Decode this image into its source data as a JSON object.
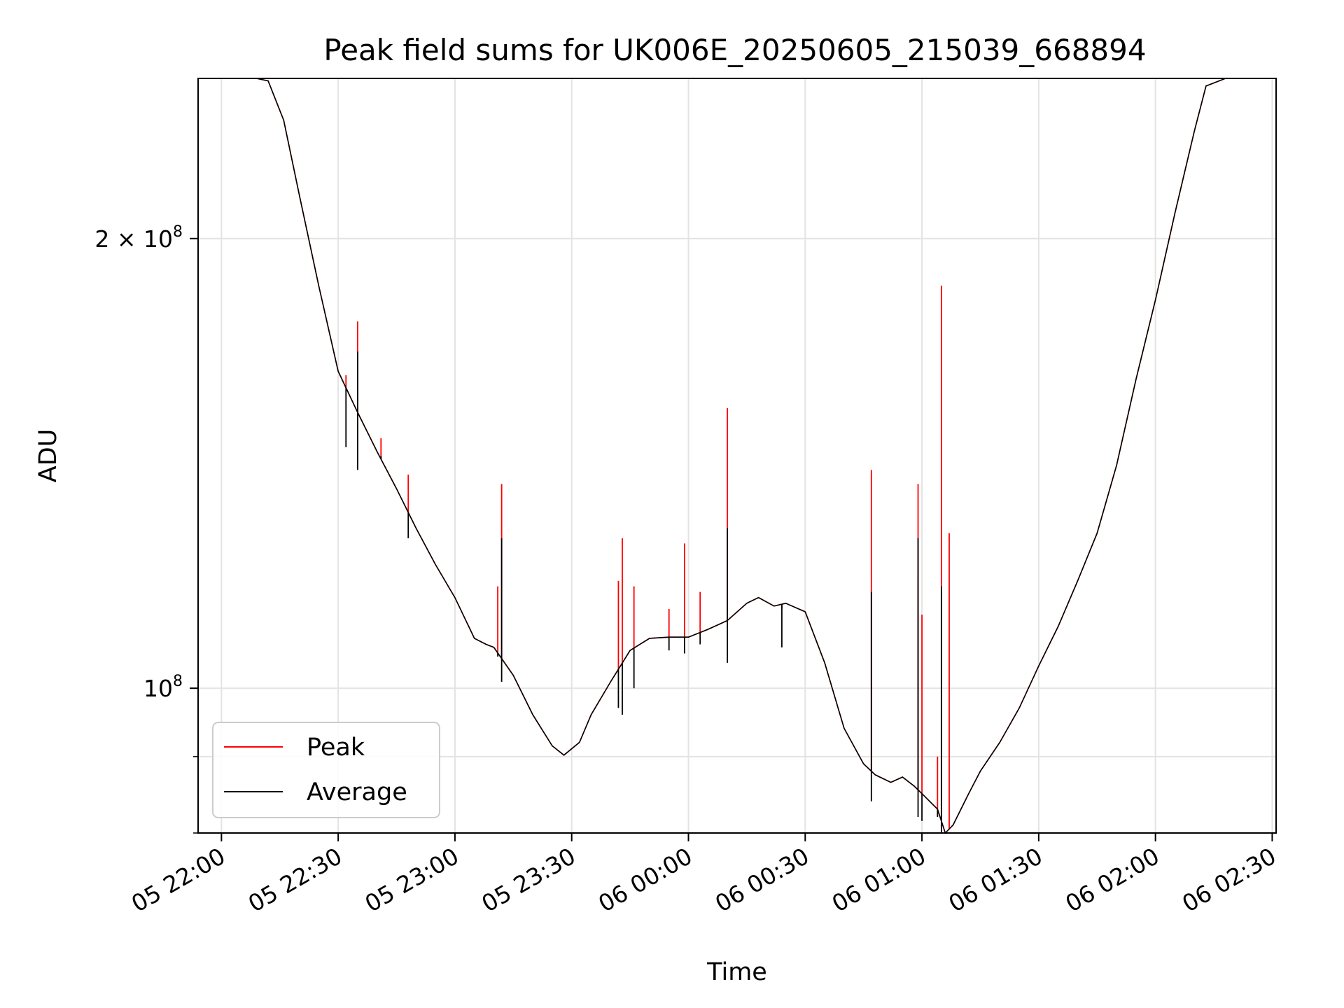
{
  "chart_data": {
    "type": "line",
    "title": "Peak field sums for UK006E_20250605_215039_668894",
    "xlabel": "Time",
    "ylabel": "ADU",
    "y_scale": "log",
    "ylim": [
      80000000,
      256000000
    ],
    "xlim": [
      "05 21:54",
      "06 02:31"
    ],
    "grid": true,
    "legend_position": "lower-left",
    "x_ticks": [
      "05 22:00",
      "05 22:30",
      "05 23:00",
      "05 23:30",
      "06 00:00",
      "06 00:30",
      "06 01:00",
      "06 01:30",
      "06 02:00",
      "06 02:30"
    ],
    "y_ticks": [
      {
        "value": 100000000,
        "base": "10",
        "exp": "8",
        "coef": ""
      },
      {
        "value": 200000000,
        "base": "10",
        "exp": "8",
        "coef": "2 × "
      }
    ],
    "x": [
      "05 22:09",
      "05 22:12",
      "05 22:16",
      "05 22:20",
      "05 22:25",
      "05 22:30",
      "05 22:35",
      "05 22:40",
      "05 22:45",
      "05 22:50",
      "05 22:55",
      "05 23:00",
      "05 23:05",
      "05 23:08",
      "05 23:10",
      "05 23:15",
      "05 23:20",
      "05 23:25",
      "05 23:28",
      "05 23:32",
      "05 23:35",
      "05 23:40",
      "05 23:45",
      "05 23:50",
      "05 23:55",
      "06 00:00",
      "06 00:05",
      "06 00:10",
      "06 00:15",
      "06 00:18",
      "06 00:22",
      "06 00:25",
      "06 00:30",
      "06 00:35",
      "06 00:40",
      "06 00:45",
      "06 00:48",
      "06 00:52",
      "06 00:55",
      "06 00:58",
      "06 01:00",
      "06 01:04",
      "06 01:06",
      "06 01:08",
      "06 01:12",
      "06 01:15",
      "06 01:20",
      "06 01:25",
      "06 01:30",
      "06 01:35",
      "06 01:40",
      "06 01:45",
      "06 01:50",
      "06 01:55",
      "06 02:00",
      "06 02:05",
      "06 02:10",
      "06 02:13",
      "06 02:18",
      "06 02:31"
    ],
    "series": [
      {
        "name": "Peak",
        "color": "#ff0000",
        "values": [
          256000000,
          255000000,
          240000000,
          214000000,
          186000000,
          163000000,
          153000000,
          144000000,
          136000000,
          128000000,
          121000000,
          115000000,
          108000000,
          107000000,
          106500000,
          102000000,
          96000000,
          91500000,
          90200000,
          92000000,
          96000000,
          101000000,
          106000000,
          108000000,
          108200000,
          108200000,
          109500000,
          111000000,
          114000000,
          115000000,
          113500000,
          114000000,
          112500000,
          104000000,
          94000000,
          89000000,
          87500000,
          86500000,
          87200000,
          86000000,
          85000000,
          83000000,
          80000000,
          81000000,
          85000000,
          88000000,
          92000000,
          97000000,
          103500000,
          110000000,
          118000000,
          127000000,
          141000000,
          161000000,
          182000000,
          208000000,
          236000000,
          253000000,
          256000000,
          256000000
        ]
      },
      {
        "name": "Average",
        "color": "#000000",
        "values": [
          256000000,
          255000000,
          240000000,
          214000000,
          186000000,
          163000000,
          153000000,
          144000000,
          136000000,
          128000000,
          121000000,
          115000000,
          108000000,
          107000000,
          106500000,
          102000000,
          96000000,
          91500000,
          90200000,
          92000000,
          96000000,
          101000000,
          106000000,
          108000000,
          108200000,
          108200000,
          109500000,
          111000000,
          114000000,
          115000000,
          113500000,
          114000000,
          112500000,
          104000000,
          94000000,
          89000000,
          87500000,
          86500000,
          87200000,
          86000000,
          85000000,
          83000000,
          80000000,
          81000000,
          85000000,
          88000000,
          92000000,
          97000000,
          103500000,
          110000000,
          118000000,
          127000000,
          141000000,
          161000000,
          182000000,
          208000000,
          236000000,
          253000000,
          256000000,
          256000000
        ]
      }
    ],
    "spikes": [
      {
        "x": "05 22:32",
        "peak": 162000000,
        "avg_low": 145000000
      },
      {
        "x": "05 22:35",
        "peak": 176000000,
        "avg_high": 168000000,
        "avg_low": 140000000
      },
      {
        "x": "05 22:41",
        "peak": 147000000,
        "avg_high": 143000000
      },
      {
        "x": "05 22:48",
        "peak": 139000000,
        "avg_low": 126000000
      },
      {
        "x": "05 23:11",
        "peak": 117000000,
        "avg_low": 105000000
      },
      {
        "x": "05 23:12",
        "peak": 137000000,
        "avg_high": 126000000,
        "avg_low": 101000000
      },
      {
        "x": "05 23:41",
        "peak": 102000000
      },
      {
        "x": "05 23:42",
        "peak": 118000000,
        "avg_low": 97000000
      },
      {
        "x": "05 23:43",
        "peak": 126000000,
        "avg_low": 96000000
      },
      {
        "x": "05 23:46",
        "peak": 117000000,
        "avg_low": 100000000
      },
      {
        "x": "05 23:55",
        "peak": 113000000,
        "avg_low": 106000000
      },
      {
        "x": "05 23:59",
        "peak": 125000000,
        "avg_low": 105500000
      },
      {
        "x": "06 00:03",
        "peak": 116000000,
        "avg_low": 107000000
      },
      {
        "x": "06 00:10",
        "peak": 154000000,
        "avg_high": 128000000,
        "avg_low": 104000000
      },
      {
        "x": "06 00:24",
        "peak": 113000000,
        "avg_low": 106500000
      },
      {
        "x": "06 00:47",
        "peak": 140000000,
        "avg_high": 116000000,
        "avg_low": 84000000
      },
      {
        "x": "06 00:59",
        "peak": 118000000,
        "avg_low": 86000000
      },
      {
        "x": "06 00:59",
        "peak": 137000000,
        "avg_high": 126000000,
        "avg_low": 82000000
      },
      {
        "x": "06 01:00",
        "peak": 112000000,
        "avg_low": 81500000
      },
      {
        "x": "06 01:04",
        "peak": 90000000,
        "avg_low": 82000000
      },
      {
        "x": "06 01:05",
        "peak": 186000000,
        "avg_high": 117000000,
        "avg_low": 80000000
      },
      {
        "x": "06 01:07",
        "peak": 127000000,
        "avg_low": 80500000
      }
    ]
  },
  "legend": {
    "items": [
      {
        "label": "Peak",
        "color": "#ff0000"
      },
      {
        "label": "Average",
        "color": "#000000"
      }
    ]
  }
}
